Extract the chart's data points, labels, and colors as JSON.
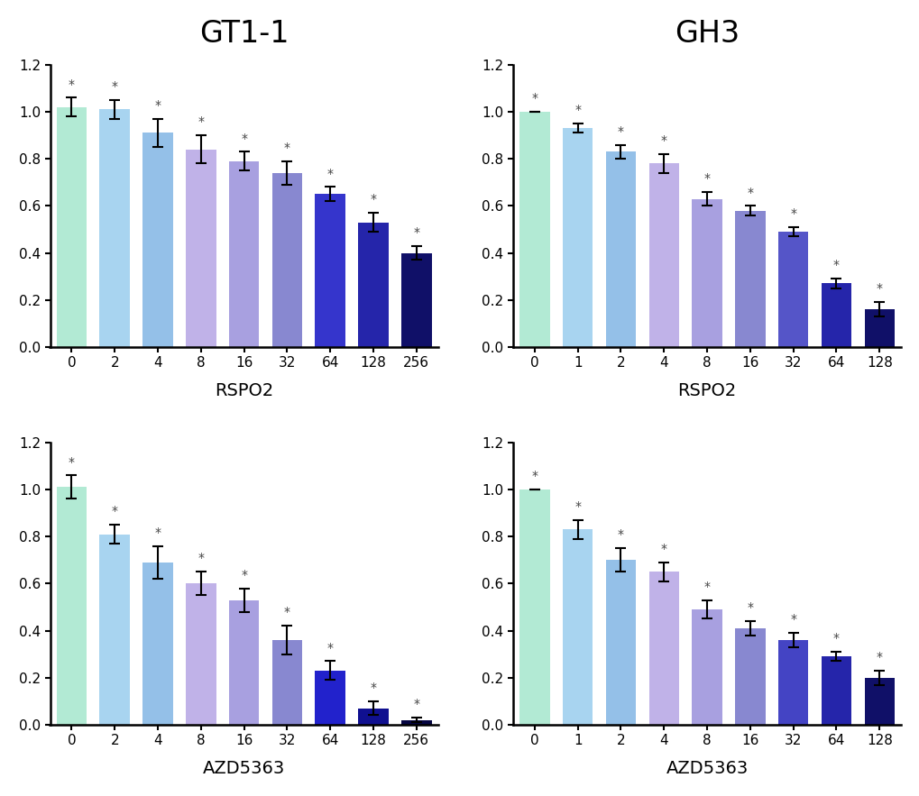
{
  "panels": [
    {
      "title": "GT1-1",
      "xlabel": "RSPO2",
      "categories": [
        "0",
        "2",
        "4",
        "8",
        "16",
        "32",
        "64",
        "128",
        "256"
      ],
      "values": [
        1.02,
        1.01,
        0.91,
        0.84,
        0.79,
        0.74,
        0.65,
        0.53,
        0.4
      ],
      "errors": [
        0.04,
        0.04,
        0.06,
        0.06,
        0.04,
        0.05,
        0.03,
        0.04,
        0.03
      ],
      "colors": [
        "#b2ead4",
        "#a8d4f0",
        "#94c0e8",
        "#c0b2e8",
        "#a8a0e0",
        "#8888d0",
        "#3535cc",
        "#2525aa",
        "#101068"
      ]
    },
    {
      "title": "GH3",
      "xlabel": "RSPO2",
      "categories": [
        "0",
        "1",
        "2",
        "4",
        "8",
        "16",
        "32",
        "64",
        "128"
      ],
      "values": [
        1.0,
        0.93,
        0.83,
        0.78,
        0.63,
        0.58,
        0.49,
        0.27,
        0.16
      ],
      "errors": [
        0.0,
        0.02,
        0.03,
        0.04,
        0.03,
        0.02,
        0.02,
        0.02,
        0.03
      ],
      "colors": [
        "#b2ead4",
        "#a8d4f0",
        "#94c0e8",
        "#c0b2e8",
        "#a8a0e0",
        "#8888d0",
        "#5555c8",
        "#2525aa",
        "#101068"
      ]
    },
    {
      "title": "",
      "xlabel": "AZD5363",
      "categories": [
        "0",
        "2",
        "4",
        "8",
        "16",
        "32",
        "64",
        "128",
        "256"
      ],
      "values": [
        1.01,
        0.81,
        0.69,
        0.6,
        0.53,
        0.36,
        0.23,
        0.07,
        0.02
      ],
      "errors": [
        0.05,
        0.04,
        0.07,
        0.05,
        0.05,
        0.06,
        0.04,
        0.03,
        0.01
      ],
      "colors": [
        "#b2ead4",
        "#a8d4f0",
        "#94c0e8",
        "#c0b2e8",
        "#a8a0e0",
        "#8888d0",
        "#2222cc",
        "#101090",
        "#050540"
      ]
    },
    {
      "title": "",
      "xlabel": "AZD5363",
      "categories": [
        "0",
        "1",
        "2",
        "4",
        "8",
        "16",
        "32",
        "64",
        "128"
      ],
      "values": [
        1.0,
        0.83,
        0.7,
        0.65,
        0.49,
        0.41,
        0.36,
        0.29,
        0.2
      ],
      "errors": [
        0.0,
        0.04,
        0.05,
        0.04,
        0.04,
        0.03,
        0.03,
        0.02,
        0.03
      ],
      "colors": [
        "#b2ead4",
        "#a8d4f0",
        "#94c0e8",
        "#c0b2e8",
        "#a8a0e0",
        "#8888d0",
        "#4444c4",
        "#2525aa",
        "#101068"
      ]
    }
  ],
  "col_titles": [
    "GT1-1",
    "GH3"
  ],
  "ylim": [
    0,
    1.2
  ],
  "yticks": [
    0.0,
    0.2,
    0.4,
    0.6,
    0.8,
    1.0,
    1.2
  ],
  "background_color": "#ffffff"
}
